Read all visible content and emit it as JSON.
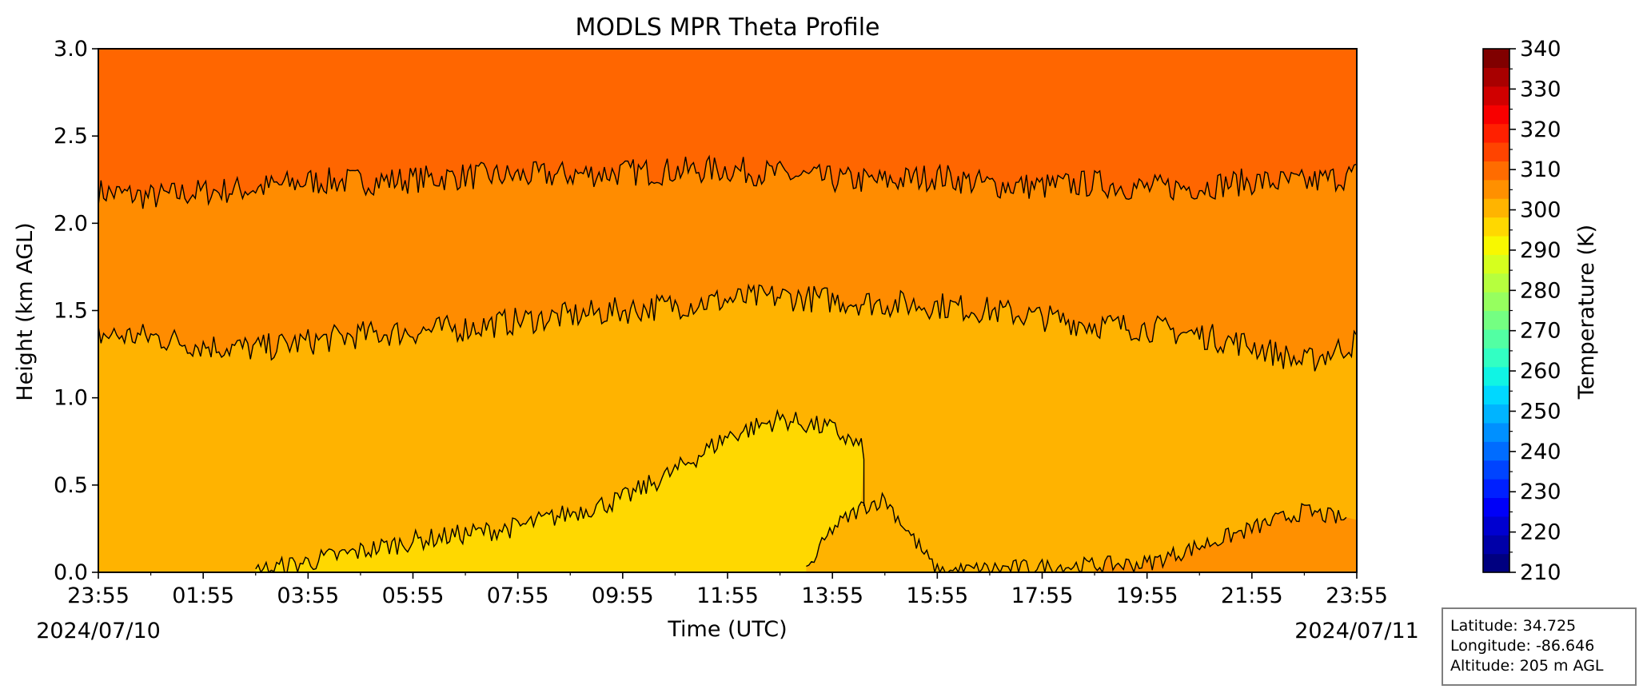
{
  "title": "MODLS MPR Theta Profile",
  "xlabel": "Time (UTC)",
  "ylabel": "Height (km AGL)",
  "date_start": "2024/07/10",
  "date_end": "2024/07/11",
  "colorbar": {
    "label": "Temperature (K)",
    "ticks": [
      "210",
      "220",
      "230",
      "240",
      "250",
      "260",
      "270",
      "280",
      "290",
      "300",
      "310",
      "320",
      "330",
      "340"
    ],
    "colors": [
      "#000080",
      "#0000a8",
      "#0000d0",
      "#0000f8",
      "#0020ff",
      "#0044ff",
      "#006cff",
      "#0090ff",
      "#00b4ff",
      "#00d8ff",
      "#10f4e4",
      "#32ffc3",
      "#52ffa3",
      "#74ff82",
      "#96ff5f",
      "#b6ff3e",
      "#d6ff1e",
      "#f8f800",
      "#ffd800",
      "#ffb400",
      "#ff9000",
      "#ff6c00",
      "#ff4400",
      "#ff2000",
      "#f80000",
      "#d00000",
      "#a80000",
      "#800000"
    ]
  },
  "info": {
    "latitude": "Latitude: 34.725",
    "longitude": "Longitude: -86.646",
    "altitude": "Altitude: 205 m AGL"
  },
  "chart_data": {
    "type": "contour",
    "x_ticks": [
      "23:55",
      "01:55",
      "03:55",
      "05:55",
      "07:55",
      "09:55",
      "11:55",
      "13:55",
      "15:55",
      "17:55",
      "19:55",
      "21:55",
      "23:55"
    ],
    "y_ticks": [
      "0.0",
      "0.5",
      "1.0",
      "1.5",
      "2.0",
      "2.5",
      "3.0"
    ],
    "ylim": [
      0,
      3.0
    ],
    "xlim_hours": [
      0,
      24
    ],
    "fill_levels": [
      {
        "range": "295-300 K",
        "color": "#ffd800"
      },
      {
        "range": "300-305 K",
        "color": "#ffb400"
      },
      {
        "range": "305-310 K",
        "color": "#ff9000"
      },
      {
        "range": "310-315 K",
        "color": "#ff6c00"
      }
    ],
    "contour_lines": [
      {
        "level_k": 310,
        "hours": [
          0,
          1,
          2,
          3,
          4,
          5,
          6,
          7,
          8,
          9,
          10,
          11,
          12,
          13,
          14,
          15,
          16,
          17,
          18,
          19,
          20,
          21,
          22,
          23,
          24
        ],
        "height_km": [
          2.18,
          2.15,
          2.18,
          2.2,
          2.24,
          2.24,
          2.25,
          2.27,
          2.27,
          2.28,
          2.29,
          2.3,
          2.31,
          2.28,
          2.25,
          2.24,
          2.27,
          2.22,
          2.21,
          2.23,
          2.2,
          2.21,
          2.24,
          2.23,
          2.28
        ]
      },
      {
        "level_k": 305,
        "hours": [
          0,
          1,
          2,
          3,
          4,
          5,
          6,
          7,
          8,
          9,
          10,
          11,
          12,
          13,
          14,
          15,
          16,
          17,
          18,
          19,
          20,
          21,
          22,
          23,
          24
        ],
        "height_km": [
          1.36,
          1.35,
          1.3,
          1.28,
          1.32,
          1.36,
          1.38,
          1.4,
          1.44,
          1.47,
          1.5,
          1.53,
          1.56,
          1.58,
          1.56,
          1.54,
          1.53,
          1.5,
          1.46,
          1.42,
          1.4,
          1.36,
          1.3,
          1.2,
          1.32
        ]
      },
      {
        "level_k": 300,
        "hours": [
          3.0,
          4.0,
          5.0,
          6.0,
          7.0,
          8.0,
          9.0,
          10.0,
          11.0,
          12.0,
          13.0,
          14.0,
          14.6
        ],
        "height_km": [
          0.0,
          0.06,
          0.12,
          0.18,
          0.22,
          0.26,
          0.34,
          0.42,
          0.58,
          0.78,
          0.88,
          0.82,
          0.7
        ]
      },
      {
        "level_k": 300,
        "hours": [
          13.5,
          14.0,
          14.6,
          15.0,
          16.0,
          17.0,
          18.0,
          19.0,
          20.0,
          21.0,
          22.0,
          23.0,
          23.8
        ],
        "height_km": [
          0.0,
          0.25,
          0.38,
          0.42,
          0.0,
          0.02,
          0.03,
          0.04,
          0.05,
          0.15,
          0.25,
          0.35,
          0.3
        ]
      }
    ]
  }
}
